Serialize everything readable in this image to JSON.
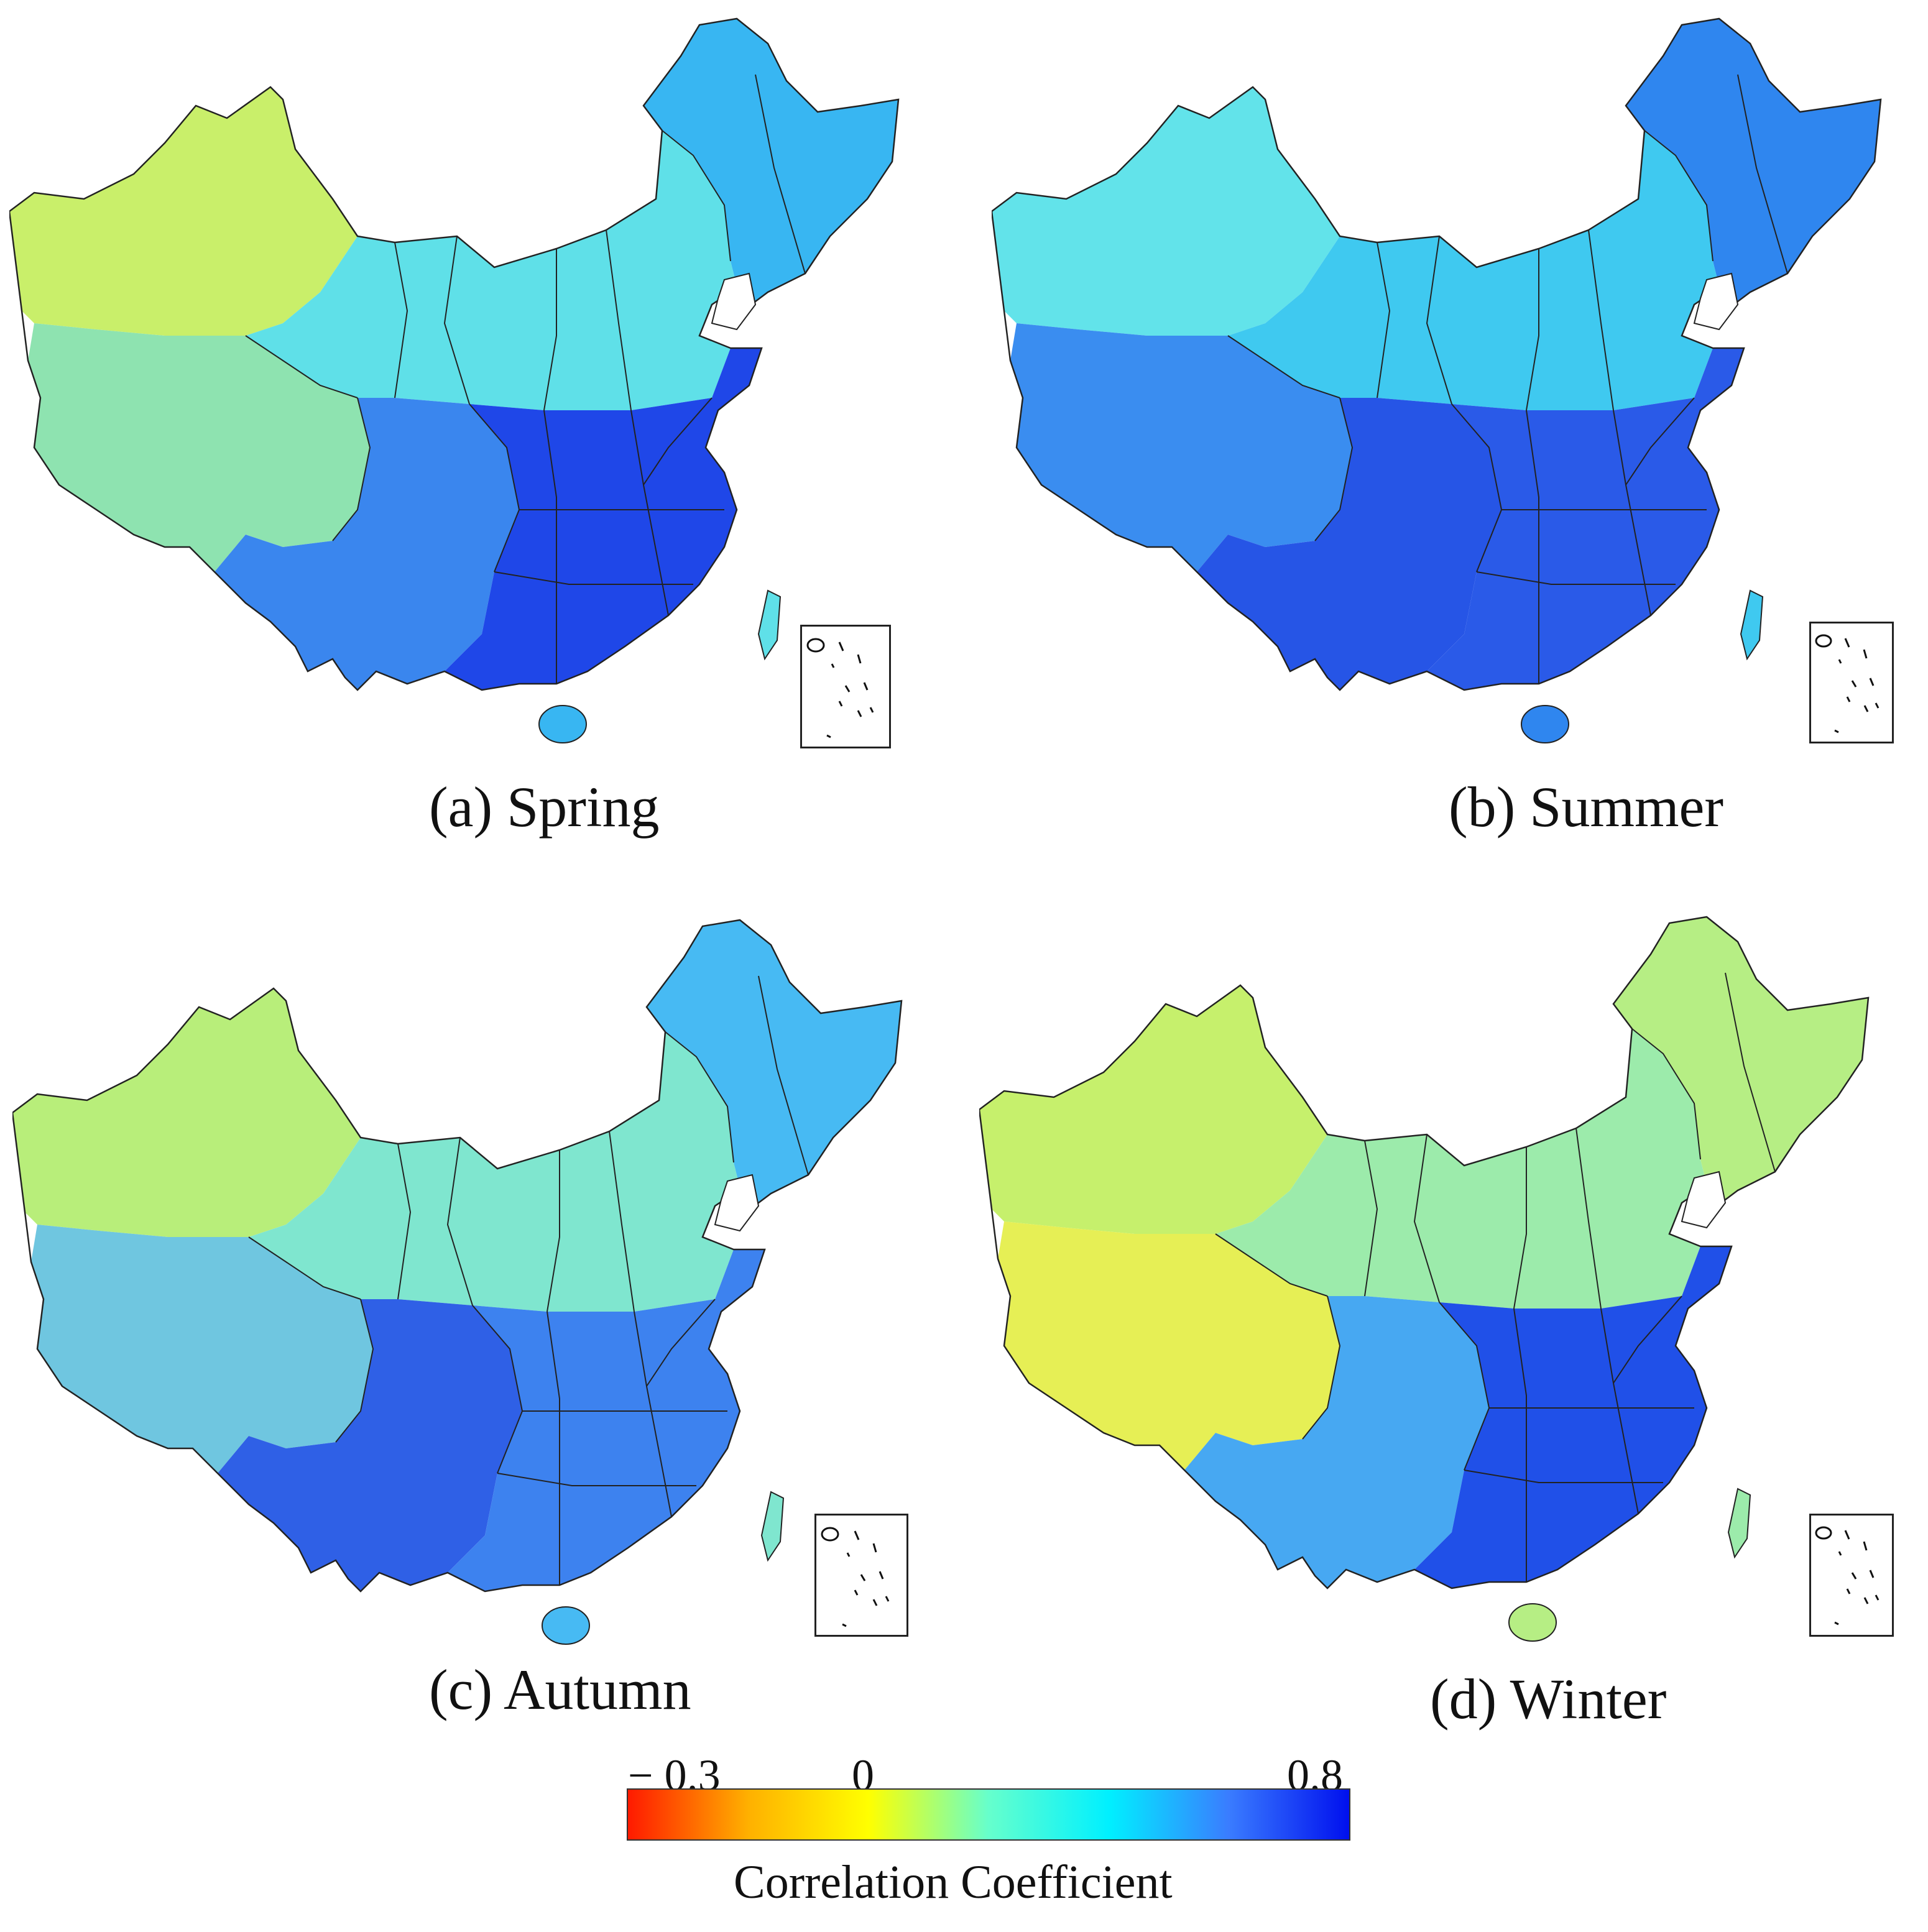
{
  "panels": [
    {
      "id": "a",
      "caption": "(a) Spring",
      "colors": {
        "west": "#c9ef6a",
        "north": "#5fe0e8",
        "northeast": "#38b6f2",
        "southwest": "#3a86ee",
        "south": "#1f47e8",
        "tibet": "#8ee3b0"
      }
    },
    {
      "id": "b",
      "caption": "(b) Summer",
      "colors": {
        "west": "#62e3ea",
        "north": "#3fc9f0",
        "northeast": "#2f86ef",
        "southwest": "#2655e6",
        "south": "#2a5ae8",
        "tibet": "#3a8df0"
      }
    },
    {
      "id": "c",
      "caption": "(c) Autumn",
      "colors": {
        "west": "#b8ee7a",
        "north": "#7fe6cf",
        "northeast": "#47baf3",
        "southwest": "#2f60e6",
        "south": "#3d82ef",
        "tibet": "#6fc6e0"
      }
    },
    {
      "id": "d",
      "caption": "(d) Winter",
      "colors": {
        "west": "#c6f06c",
        "north": "#9cebab",
        "northeast": "#b6ee84",
        "southwest": "#47a8f2",
        "south": "#2050e8",
        "tibet": "#e6ef55"
      }
    }
  ],
  "colorbar": {
    "label": "Correlation Coefficient",
    "min_label": "− 0.3",
    "zero_label": "0",
    "max_label": "0.8",
    "min": -0.3,
    "max": 0.8,
    "stops": [
      "#ff1a00",
      "#ffb000",
      "#ffff00",
      "#66ffcc",
      "#00f0ff",
      "#3a7cff",
      "#0010ee"
    ]
  }
}
